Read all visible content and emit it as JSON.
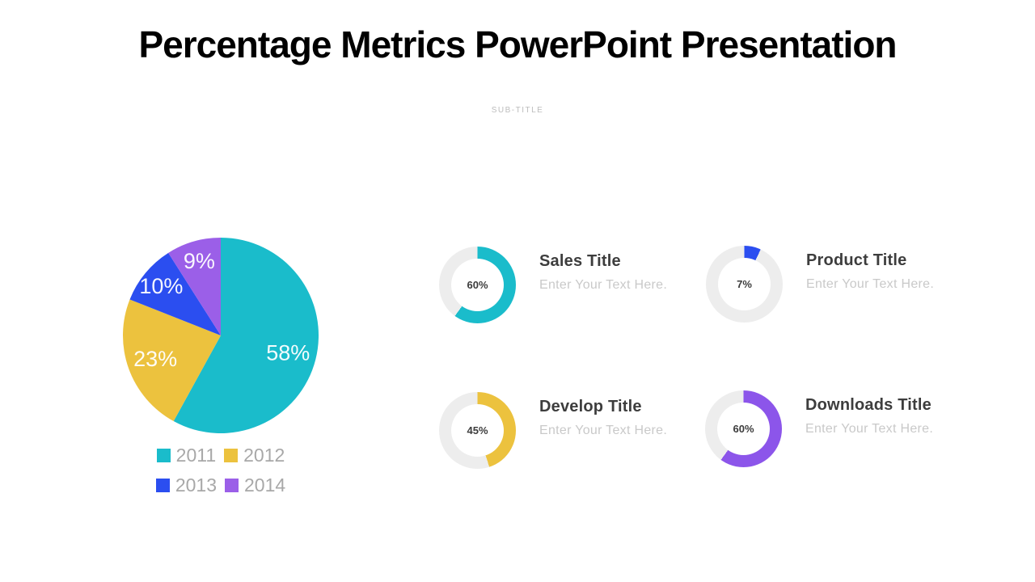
{
  "header": {
    "title": "Percentage Metrics PowerPoint Presentation",
    "subtitle": "SUB-TITLE"
  },
  "colors": {
    "track": "#ededed",
    "accent_teal": "#1abccb",
    "accent_yellow": "#ecc23e",
    "accent_blue": "#2b4ef0",
    "accent_purple": "#9b5fe8",
    "accent_purple_deep": "#8c55ea",
    "pie_label_text": "#ffffff",
    "legend_text": "#a8a8a8",
    "card_title_text": "#3d3d3d",
    "muted_text": "#c9c9c9"
  },
  "chart_data": [
    {
      "type": "pie",
      "title": "",
      "labels": [
        "2011",
        "2012",
        "2013",
        "2014"
      ],
      "values": [
        58,
        23,
        10,
        9
      ],
      "value_labels": [
        "58%",
        "23%",
        "10%",
        "9%"
      ],
      "colors": [
        "#1abccb",
        "#ecc23e",
        "#2b4ef0",
        "#9b5fe8"
      ],
      "start_angle": "12-oclock",
      "direction": "clockwise",
      "legend_position": "bottom"
    },
    {
      "type": "donut",
      "name": "Sales Title",
      "description": "Enter Your Text Here.",
      "value": 60,
      "value_label": "60%",
      "color": "#1abccb"
    },
    {
      "type": "donut",
      "name": "Product Title",
      "description": "Enter Your Text Here.",
      "value": 7,
      "value_label": "7%",
      "color": "#2b4ef0"
    },
    {
      "type": "donut",
      "name": "Develop Title",
      "description": "Enter Your Text Here.",
      "value": 45,
      "value_label": "45%",
      "color": "#ecc23e"
    },
    {
      "type": "donut",
      "name": "Downloads Title",
      "description": "Enter Your Text Here.",
      "value": 60,
      "value_label": "60%",
      "color": "#8c55ea"
    }
  ]
}
